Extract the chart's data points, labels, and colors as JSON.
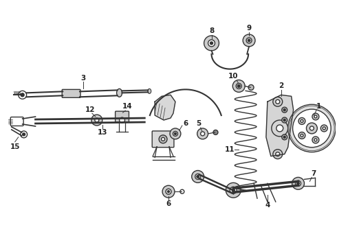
{
  "bg_color": "#ffffff",
  "line_color": "#333333",
  "label_color": "#222222",
  "fig_width": 4.9,
  "fig_height": 3.6,
  "dpi": 100
}
